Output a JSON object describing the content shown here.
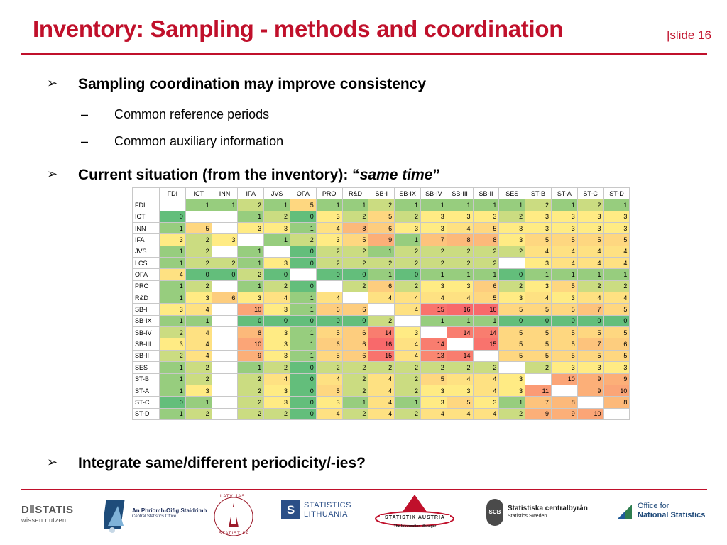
{
  "header": {
    "title": "Inventory: Sampling - methods and coordination",
    "slide_label": "|slide 16"
  },
  "bullets": {
    "b1": "Sampling coordination may improve consistency",
    "b1_sub1": "Common reference periods",
    "b1_sub2": "Common auxiliary information",
    "b2_prefix": "Current situation (from the inventory): “",
    "b2_em": "same time",
    "b2_suffix": "”",
    "b3": "Integrate same/different periodicity/-ies?",
    "arrow": "➢",
    "dash": "–"
  },
  "matrix": {
    "columns": [
      "FDI",
      "ICT",
      "INN",
      "IFA",
      "JVS",
      "OFA",
      "PRO",
      "R&D",
      "SB-I",
      "SB-IX",
      "SB-IV",
      "SB-III",
      "SB-II",
      "SES",
      "ST-B",
      "ST-A",
      "ST-C",
      "ST-D"
    ],
    "rows": [
      {
        "label": "FDI",
        "values": [
          null,
          1,
          1,
          2,
          1,
          5,
          1,
          1,
          2,
          1,
          1,
          1,
          1,
          1,
          2,
          1,
          2,
          1
        ]
      },
      {
        "label": "ICT",
        "values": [
          0,
          null,
          null,
          1,
          2,
          0,
          3,
          2,
          5,
          2,
          3,
          3,
          3,
          2,
          3,
          3,
          3,
          3
        ]
      },
      {
        "label": "INN",
        "values": [
          1,
          5,
          null,
          3,
          3,
          1,
          4,
          8,
          6,
          3,
          3,
          4,
          5,
          3,
          3,
          3,
          3,
          3
        ]
      },
      {
        "label": "IFA",
        "values": [
          3,
          2,
          3,
          null,
          1,
          2,
          3,
          5,
          9,
          1,
          7,
          8,
          8,
          3,
          5,
          5,
          5,
          5
        ]
      },
      {
        "label": "JVS",
        "values": [
          1,
          2,
          null,
          1,
          null,
          0,
          2,
          2,
          1,
          2,
          2,
          2,
          2,
          2,
          4,
          4,
          4,
          4
        ]
      },
      {
        "label": "LCS",
        "values": [
          1,
          2,
          2,
          1,
          3,
          0,
          2,
          2,
          2,
          2,
          2,
          2,
          2,
          null,
          3,
          4,
          4,
          4
        ]
      },
      {
        "label": "OFA",
        "values": [
          4,
          0,
          0,
          2,
          0,
          null,
          0,
          0,
          1,
          0,
          1,
          1,
          1,
          0,
          1,
          1,
          1,
          1
        ]
      },
      {
        "label": "PRO",
        "values": [
          1,
          2,
          null,
          1,
          2,
          0,
          null,
          2,
          6,
          2,
          3,
          3,
          6,
          2,
          3,
          5,
          2,
          2
        ]
      },
      {
        "label": "R&D",
        "values": [
          1,
          3,
          6,
          3,
          4,
          1,
          4,
          null,
          4,
          4,
          4,
          4,
          5,
          3,
          4,
          3,
          4,
          4
        ]
      },
      {
        "label": "SB-I",
        "values": [
          3,
          4,
          null,
          10,
          3,
          1,
          6,
          6,
          null,
          4,
          15,
          16,
          16,
          5,
          5,
          5,
          7,
          5
        ]
      },
      {
        "label": "SB-IX",
        "values": [
          1,
          1,
          null,
          0,
          0,
          0,
          0,
          0,
          2,
          null,
          1,
          1,
          1,
          0,
          0,
          0,
          0,
          0
        ]
      },
      {
        "label": "SB-IV",
        "values": [
          2,
          4,
          null,
          8,
          3,
          1,
          5,
          6,
          14,
          3,
          null,
          14,
          14,
          5,
          5,
          5,
          5,
          5
        ]
      },
      {
        "label": "SB-III",
        "values": [
          3,
          4,
          null,
          10,
          3,
          1,
          6,
          6,
          16,
          4,
          14,
          null,
          15,
          5,
          5,
          5,
          7,
          6
        ]
      },
      {
        "label": "SB-II",
        "values": [
          2,
          4,
          null,
          9,
          3,
          1,
          5,
          6,
          15,
          4,
          13,
          14,
          null,
          5,
          5,
          5,
          5,
          5
        ]
      },
      {
        "label": "SES",
        "values": [
          1,
          2,
          null,
          1,
          2,
          0,
          2,
          2,
          2,
          2,
          2,
          2,
          2,
          null,
          2,
          3,
          3,
          3
        ]
      },
      {
        "label": "ST-B",
        "values": [
          1,
          2,
          null,
          2,
          4,
          0,
          4,
          2,
          4,
          2,
          5,
          4,
          4,
          3,
          null,
          10,
          9,
          9
        ]
      },
      {
        "label": "ST-A",
        "values": [
          1,
          3,
          null,
          2,
          3,
          0,
          5,
          2,
          4,
          2,
          3,
          3,
          4,
          3,
          11,
          null,
          9,
          10
        ]
      },
      {
        "label": "ST-C",
        "values": [
          0,
          1,
          null,
          2,
          3,
          0,
          3,
          1,
          4,
          1,
          3,
          5,
          3,
          1,
          7,
          8,
          null,
          8
        ]
      },
      {
        "label": "ST-D",
        "values": [
          1,
          2,
          null,
          2,
          2,
          0,
          4,
          2,
          4,
          2,
          4,
          4,
          4,
          2,
          9,
          9,
          10,
          null
        ]
      }
    ],
    "scale": {
      "low": "#63be7b",
      "mid": "#ffeb84",
      "high": "#f8696b",
      "mid_value": 3,
      "max_value": 16
    }
  },
  "logos": {
    "destatis_a": "D",
    "destatis_b": "STATIS",
    "destatis_tag": "wissen.nutzen.",
    "cso_name": "An Phríomh-Oifig Staidrimh",
    "cso_sub": "Central Statistics Office",
    "latvia_top": "LATVIJAS",
    "latvia_bottom": "STATISTIKA",
    "lt_line1": "STATISTICS",
    "lt_line2": "LITHUANIA",
    "at_name": "STATISTIK AUSTRIA",
    "at_tag": "The Information Manager",
    "scb_mark": "SCB",
    "scb_name": "Statistiska centralbyrån",
    "scb_sub": "Statistics Sweden",
    "ons_line1": "Office for",
    "ons_line2": "National Statistics"
  }
}
